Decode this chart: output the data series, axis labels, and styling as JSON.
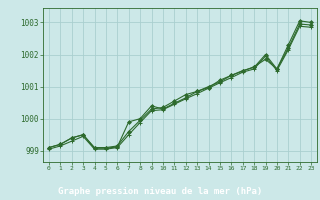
{
  "title": "Graphe pression niveau de la mer (hPa)",
  "bg_color": "#cce8e8",
  "grid_color": "#aacfcf",
  "line_color": "#2d6a2d",
  "xlabel_bg": "#2d6a2d",
  "xlabel_fg": "#ffffff",
  "xlim": [
    -0.5,
    23.5
  ],
  "ylim": [
    998.65,
    1003.45
  ],
  "yticks": [
    999,
    1000,
    1001,
    1002,
    1003
  ],
  "xticks": [
    0,
    1,
    2,
    3,
    4,
    5,
    6,
    7,
    8,
    9,
    10,
    11,
    12,
    13,
    14,
    15,
    16,
    17,
    18,
    19,
    20,
    21,
    22,
    23
  ],
  "hours": [
    0,
    1,
    2,
    3,
    4,
    5,
    6,
    7,
    8,
    9,
    10,
    11,
    12,
    13,
    14,
    15,
    16,
    17,
    18,
    19,
    20,
    21,
    22,
    23
  ],
  "line1": [
    999.1,
    999.2,
    999.4,
    999.5,
    999.1,
    999.1,
    999.15,
    999.6,
    999.95,
    1000.3,
    1000.35,
    1000.55,
    1000.75,
    1000.85,
    1001.0,
    1001.15,
    1001.35,
    1001.5,
    1001.6,
    1002.0,
    1001.55,
    1002.3,
    1003.05,
    1003.0
  ],
  "line2": [
    999.1,
    999.2,
    999.4,
    999.5,
    999.08,
    999.08,
    999.12,
    999.9,
    1000.0,
    1000.4,
    1000.3,
    1000.48,
    1000.65,
    1000.85,
    1000.97,
    1001.2,
    1001.35,
    1001.48,
    1001.62,
    1001.85,
    1001.55,
    1002.2,
    1002.95,
    1002.92
  ],
  "line3": [
    999.05,
    999.15,
    999.3,
    999.45,
    999.05,
    999.05,
    999.1,
    999.5,
    999.88,
    1000.25,
    1000.28,
    1000.45,
    1000.62,
    1000.78,
    1000.95,
    1001.12,
    1001.28,
    1001.45,
    1001.55,
    1001.95,
    1001.5,
    1002.15,
    1002.88,
    1002.85
  ]
}
